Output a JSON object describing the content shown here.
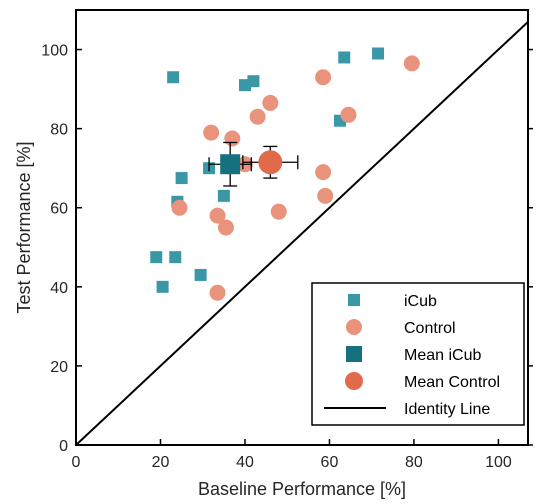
{
  "chart_data": {
    "type": "scatter",
    "xlabel": "Baseline Performance [%]",
    "ylabel": "Test Performance [%]",
    "xlim": [
      0,
      107
    ],
    "ylim": [
      0,
      110
    ],
    "xticks": [
      0,
      20,
      40,
      60,
      80,
      100
    ],
    "yticks": [
      0,
      20,
      40,
      60,
      80,
      100
    ],
    "legend_position": "bottom-right",
    "series": [
      {
        "name": "iCub",
        "marker": "square",
        "color": "#3A97A6",
        "points": [
          [
            23,
            93
          ],
          [
            40,
            91
          ],
          [
            42,
            92
          ],
          [
            63.5,
            98
          ],
          [
            71.5,
            99
          ],
          [
            62.5,
            82
          ],
          [
            25,
            67.5
          ],
          [
            31.5,
            70
          ],
          [
            35,
            63
          ],
          [
            24,
            61.5
          ],
          [
            19,
            47.5
          ],
          [
            23.5,
            47.5
          ],
          [
            29.5,
            43
          ],
          [
            20.5,
            40
          ]
        ]
      },
      {
        "name": "Control",
        "marker": "circle",
        "color": "#E9937D",
        "points": [
          [
            58.5,
            93
          ],
          [
            79.5,
            96.5
          ],
          [
            46,
            86.5
          ],
          [
            43,
            83
          ],
          [
            64.5,
            83.5
          ],
          [
            32,
            79
          ],
          [
            37,
            77.5
          ],
          [
            40,
            71
          ],
          [
            58.5,
            69
          ],
          [
            59,
            63
          ],
          [
            24.5,
            60
          ],
          [
            33.5,
            58
          ],
          [
            48,
            59
          ],
          [
            35.5,
            55
          ],
          [
            33.5,
            38.5
          ]
        ]
      },
      {
        "name": "Mean iCub",
        "marker": "square",
        "color": "#17707F",
        "points": [
          [
            36.5,
            71
          ]
        ],
        "x_err": 5,
        "y_err": 5.5
      },
      {
        "name": "Mean Control",
        "marker": "circle",
        "color": "#E06A4B",
        "points": [
          [
            46,
            71.5
          ]
        ],
        "x_err": 6.5,
        "y_err": 4
      },
      {
        "name": "Identity Line",
        "type": "line",
        "color": "#000000",
        "points": [
          [
            0,
            0
          ],
          [
            107,
            107
          ]
        ]
      }
    ]
  }
}
